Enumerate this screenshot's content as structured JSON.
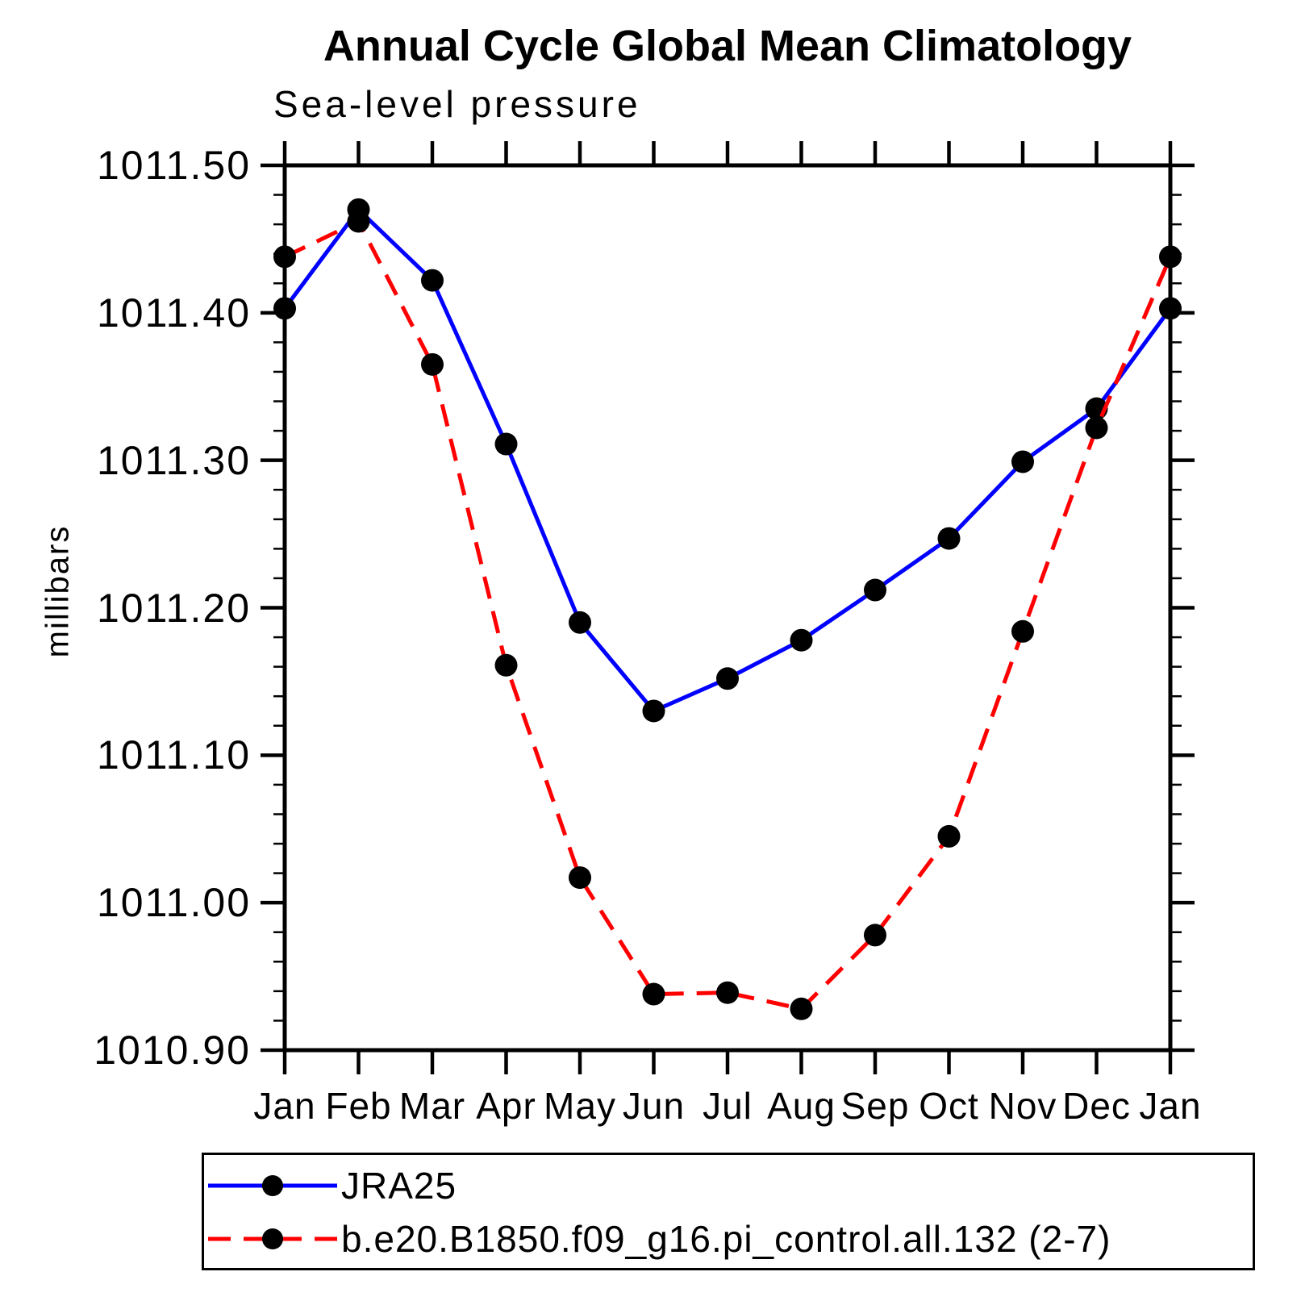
{
  "chart_data": {
    "type": "line",
    "title": "Annual Cycle Global Mean Climatology",
    "subtitle": "Sea-level pressure",
    "xlabel": "",
    "ylabel": "millibars",
    "x_tick_labels": [
      "Jan",
      "Feb",
      "Mar",
      "Apr",
      "May",
      "Jun",
      "Jul",
      "Aug",
      "Sep",
      "Oct",
      "Nov",
      "Dec",
      "Jan"
    ],
    "ylim": [
      1010.9,
      1011.5
    ],
    "y_major_step": 0.1,
    "y_minor_step": 0.02,
    "y_tick_labels": [
      "1010.90",
      "1011.00",
      "1011.10",
      "1011.20",
      "1011.30",
      "1011.40",
      "1011.50"
    ],
    "grid": false,
    "legend_position": "below-left",
    "axis_color": "#000000",
    "marker_color": "#000000",
    "series": [
      {
        "name": "JRA25",
        "color": "#0000ff",
        "style": "solid",
        "marker": "circle",
        "values": [
          1011.403,
          1011.47,
          1011.422,
          1011.311,
          1011.19,
          1011.13,
          1011.152,
          1011.178,
          1011.212,
          1011.247,
          1011.299,
          1011.335,
          1011.403
        ]
      },
      {
        "name": "b.e20.B1850.f09_g16.pi_control.all.132 (2-7)",
        "color": "#ff0000",
        "style": "dashed",
        "marker": "circle",
        "values": [
          1011.438,
          1011.462,
          1011.365,
          1011.161,
          1011.017,
          1010.938,
          1010.939,
          1010.928,
          1010.978,
          1011.045,
          1011.184,
          1011.322,
          1011.438
        ]
      }
    ]
  }
}
